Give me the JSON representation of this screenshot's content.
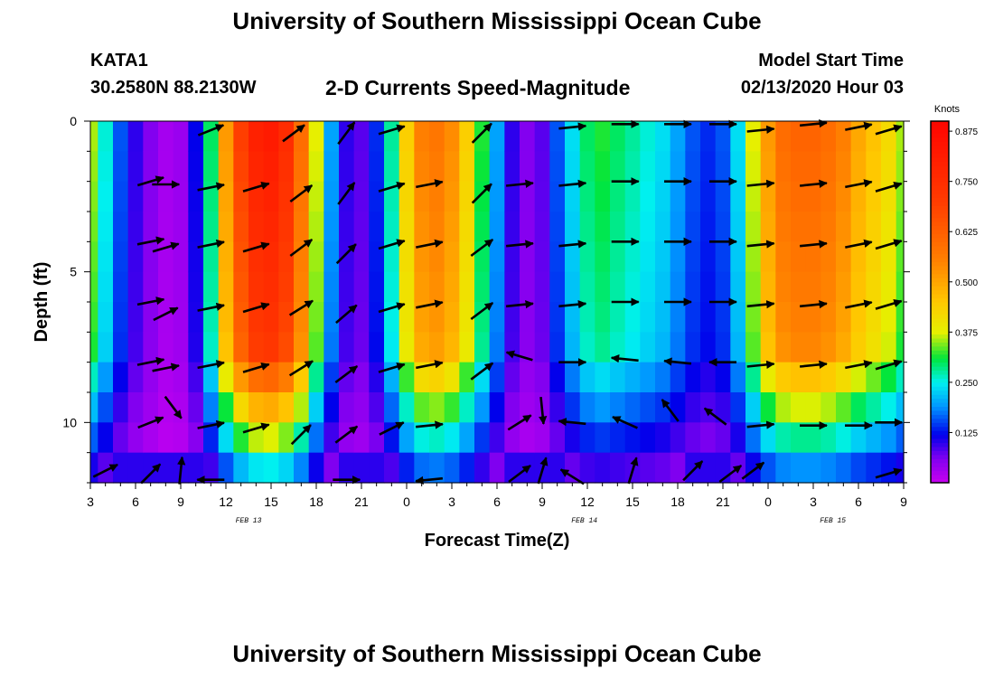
{
  "header": {
    "title": "University of Southern Mississippi Ocean Cube",
    "station": "KATA1",
    "coords": "30.2580N 88.2130W",
    "subtitle": "2-D Currents Speed-Magnitude",
    "start_label": "Model Start Time",
    "start_value": "02/13/2020 Hour 03"
  },
  "footer": {
    "title": "University of Southern Mississippi Ocean Cube"
  },
  "chart_data": {
    "type": "heatmap",
    "title": "2-D Currents Speed-Magnitude",
    "xlabel": "Forecast Time(Z)",
    "ylabel": "Depth (ft)",
    "xlim": [
      3,
      57
    ],
    "ylim": [
      12,
      0
    ],
    "x_ticks": [
      {
        "x": 3,
        "label": "3"
      },
      {
        "x": 6,
        "label": "6"
      },
      {
        "x": 9,
        "label": "9"
      },
      {
        "x": 12,
        "label": "12"
      },
      {
        "x": 15,
        "label": "15"
      },
      {
        "x": 18,
        "label": "18"
      },
      {
        "x": 21,
        "label": "21"
      },
      {
        "x": 24,
        "label": "0"
      },
      {
        "x": 27,
        "label": "3"
      },
      {
        "x": 30,
        "label": "6"
      },
      {
        "x": 33,
        "label": "9"
      },
      {
        "x": 36,
        "label": "12"
      },
      {
        "x": 39,
        "label": "15"
      },
      {
        "x": 42,
        "label": "18"
      },
      {
        "x": 45,
        "label": "21"
      },
      {
        "x": 48,
        "label": "0"
      },
      {
        "x": 51,
        "label": "3"
      },
      {
        "x": 54,
        "label": "6"
      },
      {
        "x": 57,
        "label": "9"
      }
    ],
    "date_labels": [
      {
        "x": 13.5,
        "label": "FEB 13"
      },
      {
        "x": 35.8,
        "label": "FEB 14"
      },
      {
        "x": 52.3,
        "label": "FEB 15"
      }
    ],
    "y_ticks": [
      0,
      5,
      10
    ],
    "colorbar": {
      "unit": "Knots",
      "min": 0,
      "max": 0.9,
      "ticks": [
        "0.875",
        "0.750",
        "0.625",
        "0.500",
        "0.375",
        "0.250",
        "0.125"
      ],
      "tick_values": [
        0.875,
        0.75,
        0.625,
        0.5,
        0.375,
        0.25,
        0.125
      ]
    },
    "speed_profile": {
      "x": [
        3,
        4,
        5,
        6,
        7,
        8,
        9,
        10,
        11,
        12,
        13,
        14,
        15,
        16,
        17,
        18,
        19,
        20,
        21,
        22,
        23,
        24,
        25,
        26,
        27,
        28,
        29,
        30,
        31,
        32,
        33,
        34,
        35,
        36,
        37,
        38,
        39,
        40,
        41,
        42,
        43,
        44,
        45,
        46,
        47,
        48,
        49,
        50,
        51,
        52,
        53,
        54,
        55,
        56,
        57
      ],
      "surface_speed": [
        0.36,
        0.26,
        0.16,
        0.1,
        0.06,
        0.03,
        0.04,
        0.12,
        0.3,
        0.52,
        0.7,
        0.8,
        0.82,
        0.76,
        0.6,
        0.38,
        0.2,
        0.1,
        0.08,
        0.14,
        0.28,
        0.44,
        0.56,
        0.58,
        0.54,
        0.44,
        0.32,
        0.2,
        0.1,
        0.06,
        0.08,
        0.16,
        0.24,
        0.3,
        0.32,
        0.3,
        0.28,
        0.26,
        0.24,
        0.2,
        0.16,
        0.14,
        0.16,
        0.24,
        0.38,
        0.52,
        0.6,
        0.62,
        0.62,
        0.6,
        0.56,
        0.5,
        0.46,
        0.42,
        0.36
      ]
    },
    "vectors": [
      {
        "t": 4,
        "d": 11.6,
        "dx": 1.0,
        "dy": -0.5
      },
      {
        "t": 7,
        "d": 2.0,
        "dx": 1.0,
        "dy": -0.3
      },
      {
        "t": 7,
        "d": 4.0,
        "dx": 1.0,
        "dy": -0.2
      },
      {
        "t": 7,
        "d": 6.0,
        "dx": 1.0,
        "dy": -0.2
      },
      {
        "t": 7,
        "d": 8.0,
        "dx": 1.0,
        "dy": -0.2
      },
      {
        "t": 7,
        "d": 10.0,
        "dx": 1.0,
        "dy": -0.4
      },
      {
        "t": 7,
        "d": 11.7,
        "dx": 0.7,
        "dy": -0.7
      },
      {
        "t": 8,
        "d": 2.1,
        "dx": 1.0,
        "dy": 0.0
      },
      {
        "t": 8,
        "d": 4.2,
        "dx": 1.0,
        "dy": -0.3
      },
      {
        "t": 8,
        "d": 6.4,
        "dx": 1.0,
        "dy": -0.5
      },
      {
        "t": 8,
        "d": 8.2,
        "dx": 1.0,
        "dy": -0.2
      },
      {
        "t": 8.5,
        "d": 9.5,
        "dx": 0.6,
        "dy": 0.8
      },
      {
        "t": 9,
        "d": 11.6,
        "dx": 0.1,
        "dy": -1.0
      },
      {
        "t": 11,
        "d": 0.3,
        "dx": 1.0,
        "dy": -0.4
      },
      {
        "t": 11,
        "d": 2.2,
        "dx": 1.0,
        "dy": -0.2
      },
      {
        "t": 11,
        "d": 4.1,
        "dx": 1.0,
        "dy": -0.2
      },
      {
        "t": 11,
        "d": 6.2,
        "dx": 1.0,
        "dy": -0.2
      },
      {
        "t": 11,
        "d": 8.1,
        "dx": 1.0,
        "dy": -0.2
      },
      {
        "t": 11,
        "d": 10.1,
        "dx": 1.0,
        "dy": -0.2
      },
      {
        "t": 11,
        "d": 11.9,
        "dx": -1.0,
        "dy": 0.0
      },
      {
        "t": 14,
        "d": 2.2,
        "dx": 1.0,
        "dy": -0.3
      },
      {
        "t": 14,
        "d": 4.2,
        "dx": 1.0,
        "dy": -0.3
      },
      {
        "t": 14,
        "d": 6.2,
        "dx": 1.0,
        "dy": -0.3
      },
      {
        "t": 14,
        "d": 8.2,
        "dx": 1.0,
        "dy": -0.3
      },
      {
        "t": 14,
        "d": 10.2,
        "dx": 1.0,
        "dy": -0.3
      },
      {
        "t": 16.5,
        "d": 0.4,
        "dx": 0.8,
        "dy": -0.6
      },
      {
        "t": 17,
        "d": 2.4,
        "dx": 0.8,
        "dy": -0.6
      },
      {
        "t": 17,
        "d": 4.2,
        "dx": 0.8,
        "dy": -0.6
      },
      {
        "t": 17,
        "d": 6.2,
        "dx": 0.8,
        "dy": -0.5
      },
      {
        "t": 17,
        "d": 8.2,
        "dx": 0.8,
        "dy": -0.5
      },
      {
        "t": 17,
        "d": 10.4,
        "dx": 0.7,
        "dy": -0.7
      },
      {
        "t": 20,
        "d": 0.4,
        "dx": 0.6,
        "dy": -0.8
      },
      {
        "t": 20,
        "d": 2.4,
        "dx": 0.6,
        "dy": -0.8
      },
      {
        "t": 20,
        "d": 4.4,
        "dx": 0.7,
        "dy": -0.7
      },
      {
        "t": 20,
        "d": 6.4,
        "dx": 0.7,
        "dy": -0.6
      },
      {
        "t": 20,
        "d": 8.4,
        "dx": 0.8,
        "dy": -0.6
      },
      {
        "t": 20,
        "d": 10.4,
        "dx": 0.8,
        "dy": -0.6
      },
      {
        "t": 20,
        "d": 11.9,
        "dx": 1.0,
        "dy": 0.0
      },
      {
        "t": 23,
        "d": 0.3,
        "dx": 1.0,
        "dy": -0.3
      },
      {
        "t": 23,
        "d": 2.2,
        "dx": 1.0,
        "dy": -0.3
      },
      {
        "t": 23,
        "d": 4.1,
        "dx": 1.0,
        "dy": -0.3
      },
      {
        "t": 23,
        "d": 6.2,
        "dx": 1.0,
        "dy": -0.3
      },
      {
        "t": 23,
        "d": 8.2,
        "dx": 1.0,
        "dy": -0.3
      },
      {
        "t": 23,
        "d": 10.2,
        "dx": 1.0,
        "dy": -0.5
      },
      {
        "t": 25.5,
        "d": 2.1,
        "dx": 1.0,
        "dy": -0.2
      },
      {
        "t": 25.5,
        "d": 4.1,
        "dx": 1.0,
        "dy": -0.2
      },
      {
        "t": 25.5,
        "d": 6.1,
        "dx": 1.0,
        "dy": -0.2
      },
      {
        "t": 25.5,
        "d": 8.1,
        "dx": 1.0,
        "dy": -0.2
      },
      {
        "t": 25.5,
        "d": 10.1,
        "dx": 1.0,
        "dy": -0.1
      },
      {
        "t": 25.5,
        "d": 11.9,
        "dx": -1.0,
        "dy": 0.1
      },
      {
        "t": 29,
        "d": 0.4,
        "dx": 0.7,
        "dy": -0.7
      },
      {
        "t": 29,
        "d": 2.4,
        "dx": 0.7,
        "dy": -0.7
      },
      {
        "t": 29,
        "d": 4.2,
        "dx": 0.8,
        "dy": -0.6
      },
      {
        "t": 29,
        "d": 6.3,
        "dx": 0.8,
        "dy": -0.6
      },
      {
        "t": 29,
        "d": 8.3,
        "dx": 0.8,
        "dy": -0.6
      },
      {
        "t": 31.5,
        "d": 2.1,
        "dx": 1.0,
        "dy": -0.1
      },
      {
        "t": 31.5,
        "d": 4.1,
        "dx": 1.0,
        "dy": -0.1
      },
      {
        "t": 31.5,
        "d": 6.1,
        "dx": 1.0,
        "dy": -0.1
      },
      {
        "t": 31.5,
        "d": 7.8,
        "dx": -1.0,
        "dy": -0.3
      },
      {
        "t": 31.5,
        "d": 10.0,
        "dx": 0.8,
        "dy": -0.5
      },
      {
        "t": 31.5,
        "d": 11.7,
        "dx": 0.8,
        "dy": -0.6
      },
      {
        "t": 33,
        "d": 9.6,
        "dx": 0.1,
        "dy": 1.0
      },
      {
        "t": 33,
        "d": 11.6,
        "dx": 0.3,
        "dy": -1.0
      },
      {
        "t": 35,
        "d": 0.2,
        "dx": 1.0,
        "dy": -0.1
      },
      {
        "t": 35,
        "d": 2.1,
        "dx": 1.0,
        "dy": -0.1
      },
      {
        "t": 35,
        "d": 4.1,
        "dx": 1.0,
        "dy": -0.1
      },
      {
        "t": 35,
        "d": 6.1,
        "dx": 1.0,
        "dy": -0.1
      },
      {
        "t": 35,
        "d": 8.0,
        "dx": 1.0,
        "dy": 0.0
      },
      {
        "t": 35,
        "d": 10.0,
        "dx": -1.0,
        "dy": -0.1
      },
      {
        "t": 35,
        "d": 11.8,
        "dx": -0.8,
        "dy": -0.5
      },
      {
        "t": 38.5,
        "d": 0.1,
        "dx": 1.0,
        "dy": 0.0
      },
      {
        "t": 38.5,
        "d": 2.0,
        "dx": 1.0,
        "dy": 0.0
      },
      {
        "t": 38.5,
        "d": 4.0,
        "dx": 1.0,
        "dy": 0.0
      },
      {
        "t": 38.5,
        "d": 6.0,
        "dx": 1.0,
        "dy": 0.0
      },
      {
        "t": 38.5,
        "d": 7.9,
        "dx": -1.0,
        "dy": -0.1
      },
      {
        "t": 38.5,
        "d": 10.0,
        "dx": -0.9,
        "dy": -0.4
      },
      {
        "t": 39,
        "d": 11.6,
        "dx": 0.3,
        "dy": -1.0
      },
      {
        "t": 42,
        "d": 0.1,
        "dx": 1.0,
        "dy": 0.0
      },
      {
        "t": 42,
        "d": 2.0,
        "dx": 1.0,
        "dy": 0.0
      },
      {
        "t": 42,
        "d": 4.0,
        "dx": 1.0,
        "dy": 0.0
      },
      {
        "t": 42,
        "d": 6.0,
        "dx": 1.0,
        "dy": 0.0
      },
      {
        "t": 42,
        "d": 8.0,
        "dx": -1.0,
        "dy": -0.1
      },
      {
        "t": 41.5,
        "d": 9.6,
        "dx": -0.6,
        "dy": -0.8
      },
      {
        "t": 43,
        "d": 11.6,
        "dx": 0.7,
        "dy": -0.7
      },
      {
        "t": 45,
        "d": 0.1,
        "dx": 1.0,
        "dy": 0.0
      },
      {
        "t": 45,
        "d": 2.0,
        "dx": 1.0,
        "dy": 0.0
      },
      {
        "t": 45,
        "d": 4.0,
        "dx": 1.0,
        "dy": 0.0
      },
      {
        "t": 45,
        "d": 6.0,
        "dx": 1.0,
        "dy": 0.0
      },
      {
        "t": 45,
        "d": 8.0,
        "dx": -1.0,
        "dy": 0.0
      },
      {
        "t": 44.5,
        "d": 9.8,
        "dx": -0.8,
        "dy": -0.6
      },
      {
        "t": 45.5,
        "d": 11.7,
        "dx": 0.8,
        "dy": -0.6
      },
      {
        "t": 47.5,
        "d": 0.3,
        "dx": 1.0,
        "dy": -0.1
      },
      {
        "t": 47.5,
        "d": 2.1,
        "dx": 1.0,
        "dy": -0.1
      },
      {
        "t": 47.5,
        "d": 4.1,
        "dx": 1.0,
        "dy": -0.1
      },
      {
        "t": 47.5,
        "d": 6.1,
        "dx": 1.0,
        "dy": -0.1
      },
      {
        "t": 47.5,
        "d": 8.1,
        "dx": 1.0,
        "dy": -0.1
      },
      {
        "t": 47.5,
        "d": 10.1,
        "dx": 1.0,
        "dy": -0.1
      },
      {
        "t": 47,
        "d": 11.6,
        "dx": 0.8,
        "dy": -0.6
      },
      {
        "t": 51,
        "d": 0.1,
        "dx": 1.0,
        "dy": -0.1
      },
      {
        "t": 51,
        "d": 2.1,
        "dx": 1.0,
        "dy": -0.1
      },
      {
        "t": 51,
        "d": 4.1,
        "dx": 1.0,
        "dy": -0.1
      },
      {
        "t": 51,
        "d": 6.1,
        "dx": 1.0,
        "dy": -0.1
      },
      {
        "t": 51,
        "d": 8.1,
        "dx": 1.0,
        "dy": -0.1
      },
      {
        "t": 51,
        "d": 10.1,
        "dx": 1.0,
        "dy": 0.0
      },
      {
        "t": 54,
        "d": 0.2,
        "dx": 1.0,
        "dy": -0.2
      },
      {
        "t": 54,
        "d": 2.1,
        "dx": 1.0,
        "dy": -0.2
      },
      {
        "t": 54,
        "d": 4.1,
        "dx": 1.0,
        "dy": -0.2
      },
      {
        "t": 54,
        "d": 6.1,
        "dx": 1.0,
        "dy": -0.2
      },
      {
        "t": 54,
        "d": 8.1,
        "dx": 1.0,
        "dy": -0.2
      },
      {
        "t": 54,
        "d": 10.1,
        "dx": 1.0,
        "dy": 0.0
      },
      {
        "t": 56,
        "d": 0.3,
        "dx": 1.0,
        "dy": -0.3
      },
      {
        "t": 56,
        "d": 2.2,
        "dx": 1.0,
        "dy": -0.3
      },
      {
        "t": 56,
        "d": 4.1,
        "dx": 1.0,
        "dy": -0.3
      },
      {
        "t": 56,
        "d": 6.1,
        "dx": 1.0,
        "dy": -0.3
      },
      {
        "t": 56,
        "d": 8.1,
        "dx": 1.0,
        "dy": -0.3
      },
      {
        "t": 56,
        "d": 10.0,
        "dx": 1.0,
        "dy": 0.0
      },
      {
        "t": 56,
        "d": 11.7,
        "dx": 1.0,
        "dy": -0.3
      }
    ]
  }
}
